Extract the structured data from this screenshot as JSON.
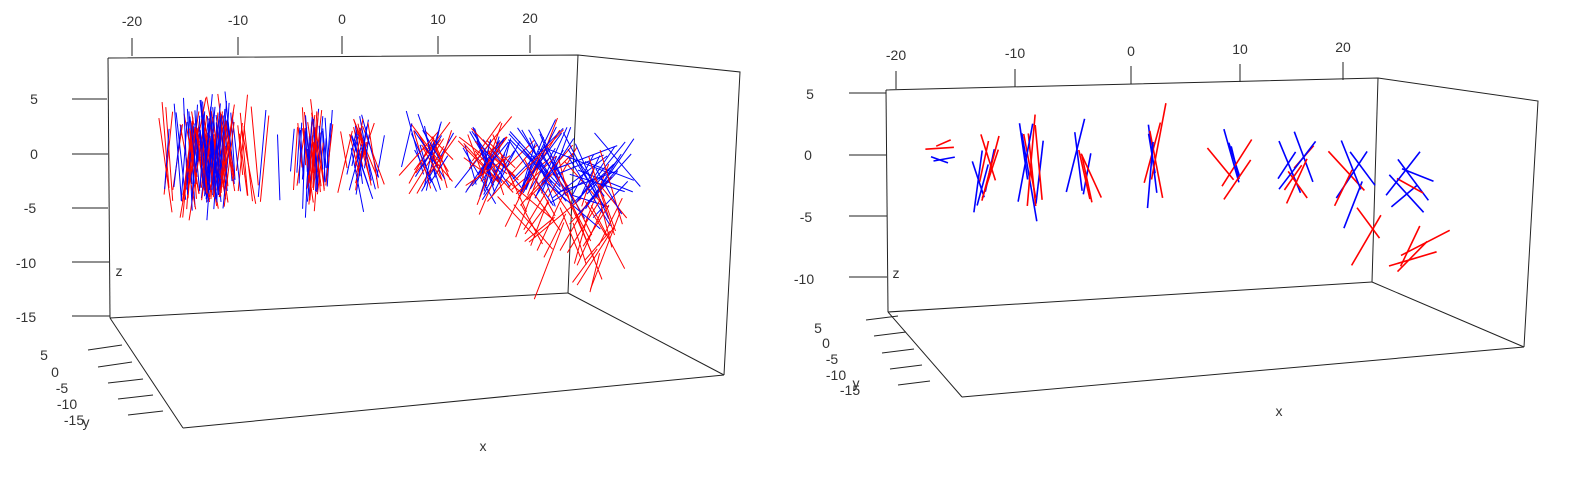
{
  "chart_data": [
    {
      "type": "scatter",
      "subtype": "3d-segments",
      "title": "",
      "xlabel": "x",
      "ylabel": "y",
      "zlabel": "z",
      "x_ticks": [
        "-20",
        "-10",
        "0",
        "10",
        "20"
      ],
      "z_ticks": [
        "5",
        "0",
        "-5",
        "-10",
        "-15"
      ],
      "y_ticks": [
        "5",
        "0",
        "-5",
        "-10",
        "-15"
      ],
      "xlim": [
        -22,
        27
      ],
      "zlim": [
        -17,
        7
      ],
      "grid": false,
      "series": [
        {
          "color": "#0000ff"
        },
        {
          "color": "#ff0000"
        }
      ],
      "clusters": [
        {
          "x": -12,
          "z": 0,
          "count": 70,
          "spread": 3.2,
          "length": 7,
          "blue_tilt": 5,
          "red_tilt": 8,
          "red_drop": 0.5
        },
        {
          "x": -2,
          "z": 0,
          "count": 26,
          "spread": 1.6,
          "length": 6,
          "blue_tilt": 4,
          "red_tilt": 6,
          "red_drop": 0.2
        },
        {
          "x": 3,
          "z": 0,
          "count": 16,
          "spread": 1.0,
          "length": 5,
          "blue_tilt": 14,
          "red_tilt": 16,
          "red_drop": 0
        },
        {
          "x": 10,
          "z": 0,
          "count": 18,
          "spread": 1.4,
          "length": 5,
          "blue_tilt": 25,
          "red_tilt": 32,
          "red_drop": 0.5
        },
        {
          "x": 16,
          "z": -0.5,
          "count": 22,
          "spread": 1.6,
          "length": 5,
          "blue_tilt": 28,
          "red_tilt": 40,
          "red_drop": 1.5
        },
        {
          "x": 21,
          "z": -1,
          "count": 26,
          "spread": 2.2,
          "length": 6,
          "blue_tilt": 32,
          "red_tilt": 36,
          "red_drop": 6.5
        },
        {
          "x": 26,
          "z": -2,
          "count": 30,
          "spread": 2.6,
          "length": 6,
          "blue_tilt": 50,
          "red_tilt": 30,
          "red_drop": 9
        }
      ]
    },
    {
      "type": "scatter",
      "subtype": "3d-segments",
      "title": "",
      "xlabel": "x",
      "ylabel": "y",
      "zlabel": "z",
      "x_ticks": [
        "-20",
        "-10",
        "0",
        "10",
        "20"
      ],
      "z_ticks": [
        "5",
        "0",
        "-5",
        "-10",
        "-15"
      ],
      "y_ticks": [
        "5",
        "0",
        "-5",
        "-10",
        "-15"
      ],
      "xlim": [
        -21,
        27
      ],
      "zlim": [
        -12,
        6
      ],
      "grid": false,
      "series": [
        {
          "color": "#0000ff"
        },
        {
          "color": "#ff0000"
        }
      ],
      "clusters": [
        {
          "x": -16,
          "z": -0.5,
          "count": 2,
          "spread": 0.5,
          "length": 2,
          "blue_tilt": 80,
          "red_tilt": 80,
          "red_drop": 0
        },
        {
          "x": -12,
          "z": -1,
          "count": 4,
          "spread": 0.9,
          "length": 5,
          "blue_tilt": 15,
          "red_tilt": 18,
          "red_drop": 0
        },
        {
          "x": -8,
          "z": -1,
          "count": 4,
          "spread": 0.8,
          "length": 6,
          "blue_tilt": 8,
          "red_tilt": 10,
          "red_drop": 0
        },
        {
          "x": -3,
          "z": -1,
          "count": 3,
          "spread": 0.7,
          "length": 5,
          "blue_tilt": 14,
          "red_tilt": 20,
          "red_drop": 0
        },
        {
          "x": 3,
          "z": -0.5,
          "count": 3,
          "spread": 0.6,
          "length": 5,
          "blue_tilt": 10,
          "red_tilt": 12,
          "red_drop": 0
        },
        {
          "x": 10,
          "z": -0.5,
          "count": 3,
          "spread": 0.8,
          "length": 4,
          "blue_tilt": 25,
          "red_tilt": 30,
          "red_drop": 0
        },
        {
          "x": 16,
          "z": -1,
          "count": 4,
          "spread": 1.0,
          "length": 4,
          "blue_tilt": 30,
          "red_tilt": 40,
          "red_drop": 1.5
        },
        {
          "x": 21,
          "z": -1.5,
          "count": 4,
          "spread": 1.1,
          "length": 4,
          "blue_tilt": 35,
          "red_tilt": 45,
          "red_drop": 6
        },
        {
          "x": 26,
          "z": -2,
          "count": 5,
          "spread": 1.0,
          "length": 4,
          "blue_tilt": 50,
          "red_tilt": 50,
          "red_drop": 8
        }
      ]
    }
  ]
}
